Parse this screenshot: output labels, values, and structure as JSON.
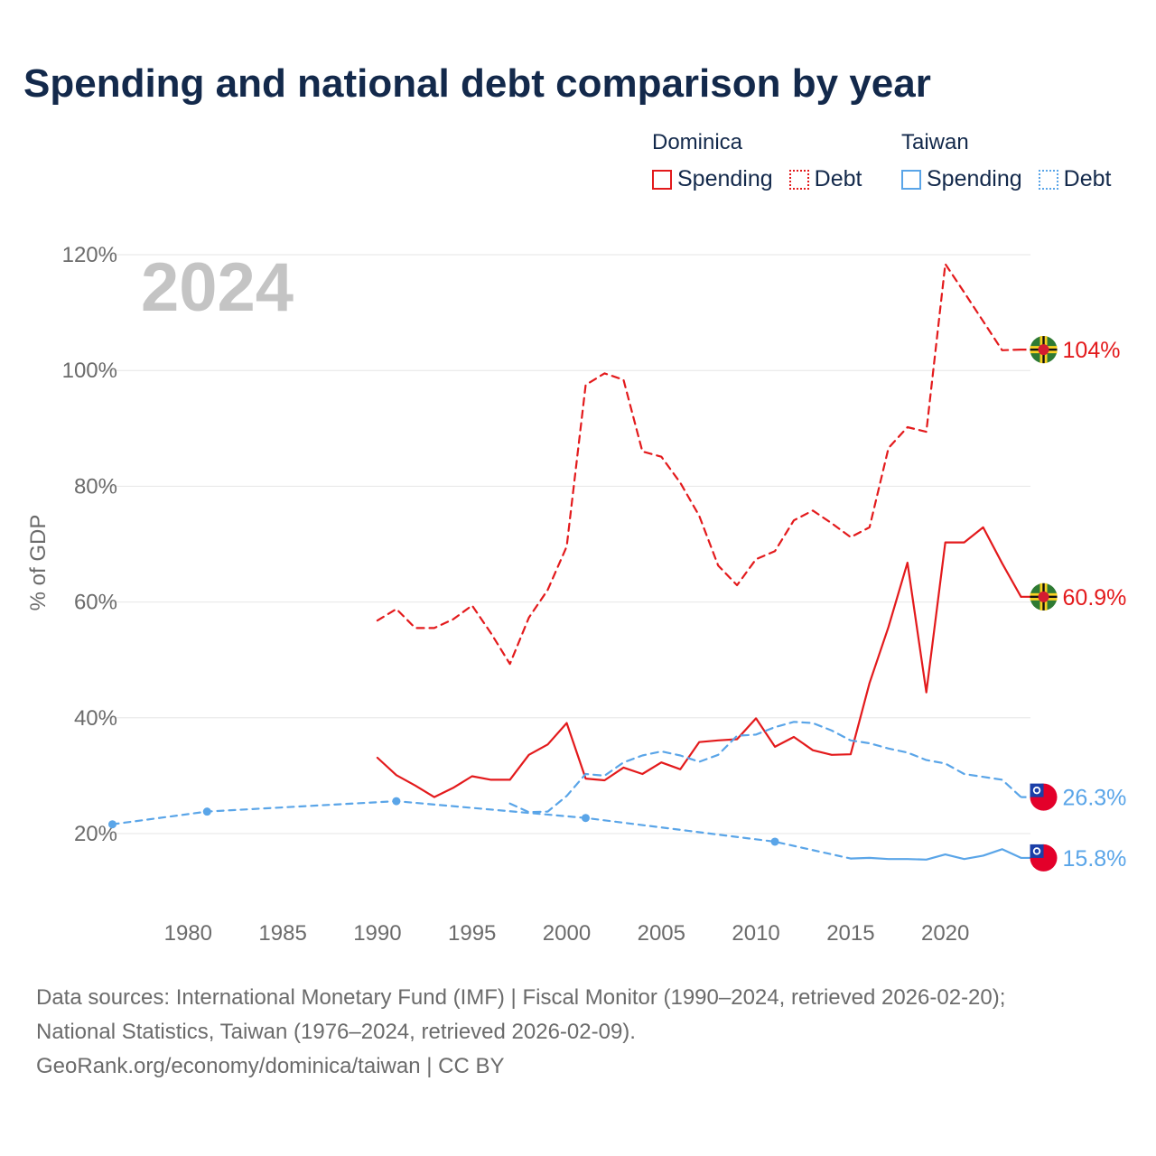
{
  "chart_data": {
    "type": "line",
    "title": "Spending and national debt comparison by year",
    "year_label": "2024",
    "ylabel": "% of GDP",
    "xlim": [
      1975.5,
      2024.5
    ],
    "ylim": [
      20,
      120
    ],
    "x_ticks": [
      1980,
      1985,
      1990,
      1995,
      2000,
      2005,
      2010,
      2015,
      2020
    ],
    "y_ticks": [
      {
        "value": 20,
        "label": "20%"
      },
      {
        "value": 40,
        "label": "40%"
      },
      {
        "value": 60,
        "label": "60%"
      },
      {
        "value": 80,
        "label": "80%"
      },
      {
        "value": 100,
        "label": "100%"
      },
      {
        "value": 120,
        "label": "120%"
      }
    ],
    "series": [
      {
        "name": "Dominica Debt",
        "country": "Dominica",
        "metric": "Debt",
        "style": "dashed",
        "color": "#e31a1c",
        "x": [
          1990,
          1991,
          1992,
          1993,
          1994,
          1995,
          1996,
          1997,
          1998,
          1999,
          2000,
          2001,
          2002,
          2003,
          2004,
          2005,
          2006,
          2007,
          2008,
          2009,
          2010,
          2011,
          2012,
          2013,
          2014,
          2015,
          2016,
          2017,
          2018,
          2019,
          2020,
          2021,
          2022,
          2023,
          2024
        ],
        "values": [
          56.8,
          58.8,
          55.5,
          55.5,
          57.0,
          59.4,
          54.6,
          49.3,
          57.3,
          62.1,
          69.6,
          97.5,
          99.5,
          98.4,
          86.0,
          85.1,
          80.6,
          74.9,
          66.3,
          62.9,
          67.4,
          68.8,
          74.1,
          75.8,
          73.6,
          71.2,
          72.9,
          86.6,
          90.2,
          89.4,
          118.4,
          113.5,
          108.5,
          103.5,
          103.6
        ],
        "end_label": "104%",
        "flag": "dominica"
      },
      {
        "name": "Dominica Spending",
        "country": "Dominica",
        "metric": "Spending",
        "style": "solid",
        "color": "#e31a1c",
        "x": [
          1990,
          1991,
          1992,
          1993,
          1994,
          1995,
          1996,
          1997,
          1998,
          1999,
          2000,
          2001,
          2002,
          2003,
          2004,
          2005,
          2006,
          2007,
          2008,
          2009,
          2010,
          2011,
          2012,
          2013,
          2014,
          2015,
          2016,
          2017,
          2018,
          2019,
          2020,
          2021,
          2022,
          2023,
          2024
        ],
        "values": [
          33.1,
          30.1,
          28.3,
          26.3,
          27.9,
          29.9,
          29.3,
          29.3,
          33.6,
          35.4,
          39.1,
          29.5,
          29.2,
          31.4,
          30.3,
          32.3,
          31.1,
          35.8,
          36.1,
          36.3,
          39.9,
          35.0,
          36.7,
          34.4,
          33.6,
          33.7,
          46.0,
          55.7,
          66.8,
          44.4,
          70.3,
          70.3,
          72.9,
          66.7,
          60.9
        ],
        "end_label": "60.9%",
        "flag": "dominica"
      },
      {
        "name": "Taiwan Debt",
        "country": "Taiwan",
        "metric": "Debt",
        "style": "dashed",
        "color": "#5aa5e8",
        "x": [
          1997,
          1998,
          1999,
          2000,
          2001,
          2002,
          2003,
          2004,
          2005,
          2006,
          2007,
          2008,
          2009,
          2010,
          2011,
          2012,
          2013,
          2014,
          2015,
          2016,
          2017,
          2018,
          2019,
          2020,
          2021,
          2022,
          2023,
          2024
        ],
        "values": [
          25.2,
          23.7,
          23.8,
          26.5,
          30.3,
          30.0,
          32.3,
          33.5,
          34.2,
          33.5,
          32.4,
          33.6,
          36.9,
          37.1,
          38.4,
          39.3,
          39.1,
          37.8,
          36.1,
          35.6,
          34.7,
          34.0,
          32.7,
          32.1,
          30.3,
          29.8,
          29.3,
          26.3
        ],
        "end_label": "26.3%",
        "flag": "taiwan"
      },
      {
        "name": "Taiwan Spending",
        "country": "Taiwan",
        "metric": "Spending",
        "style": "solid",
        "color": "#5aa5e8",
        "x": [
          2015,
          2016,
          2017,
          2018,
          2019,
          2020,
          2021,
          2022,
          2023,
          2024
        ],
        "values": [
          15.7,
          15.8,
          15.6,
          15.6,
          15.5,
          16.4,
          15.6,
          16.2,
          17.3,
          15.8
        ],
        "end_label": "15.8%",
        "flag": "taiwan"
      },
      {
        "name": "Taiwan Spending (sparse)",
        "country": "Taiwan",
        "metric": "Spending",
        "style": "dotted-markers",
        "color": "#5aa5e8",
        "x": [
          1976,
          1981,
          1991,
          2001,
          2011,
          2015
        ],
        "values": [
          21.6,
          23.8,
          25.6,
          22.7,
          18.6,
          15.7
        ],
        "markers": [
          1976,
          1981,
          1991,
          2001,
          2011
        ]
      }
    ],
    "legend": {
      "placement": "top-right",
      "groups": [
        {
          "country": "Dominica",
          "items": [
            {
              "label": "Spending",
              "style": "solid",
              "color": "#e31a1c"
            },
            {
              "label": "Debt",
              "style": "dotted",
              "color": "#e31a1c"
            }
          ]
        },
        {
          "country": "Taiwan",
          "items": [
            {
              "label": "Spending",
              "style": "solid",
              "color": "#5aa5e8"
            },
            {
              "label": "Debt",
              "style": "dotted",
              "color": "#5aa5e8"
            }
          ]
        }
      ]
    }
  },
  "footer": {
    "line1": "Data sources: International Monetary Fund (IMF) | Fiscal Monitor (1990–2024, retrieved 2026-02-20);",
    "line2": "National Statistics, Taiwan (1976–2024, retrieved 2026-02-09).",
    "line3": "GeoRank.org/economy/dominica/taiwan | CC BY"
  }
}
